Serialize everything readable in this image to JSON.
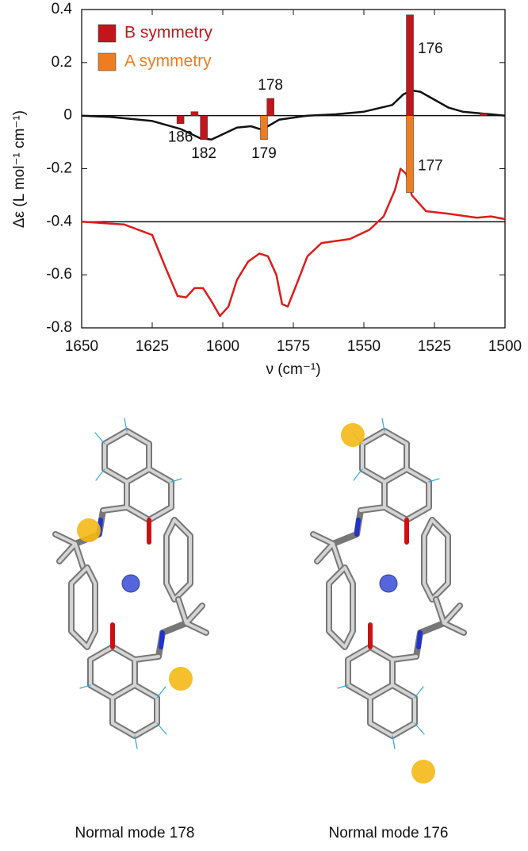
{
  "chart_data": {
    "type": "stick",
    "x_label": "ν (cm⁻¹)",
    "y_label": "Δε (L mol⁻¹ cm⁻¹)",
    "xlim": [
      1650,
      1500
    ],
    "xticks": [
      1650,
      1625,
      1600,
      1575,
      1550,
      1525,
      1500
    ],
    "ylim": [
      -0.8,
      0.4
    ],
    "yticks": [
      0.4,
      0.2,
      0,
      -0.2,
      -0.4,
      -0.6,
      -0.8
    ],
    "hlines": [
      0,
      -0.4
    ],
    "bar_series": [
      {
        "name": "B symmetry",
        "color": "#c0161c",
        "x": [
          1615,
          1610,
          1606.7,
          1583.1,
          1533.7,
          1507.6
        ],
        "values": [
          -0.03,
          0.015,
          -0.09,
          0.065,
          0.38,
          0.01
        ],
        "labels": [
          "186",
          null,
          "182",
          "178",
          "176",
          null
        ]
      },
      {
        "name": "A symmetry",
        "color": "#ee7d22",
        "x": [
          1585.4,
          1533.7
        ],
        "values": [
          -0.09,
          -0.29
        ],
        "labels": [
          "179",
          "177"
        ]
      }
    ],
    "lines": [
      {
        "color": "#111111",
        "x": [
          1650,
          1640,
          1625,
          1615,
          1608,
          1604,
          1600,
          1595,
          1590,
          1587,
          1584,
          1580,
          1570,
          1560,
          1550,
          1540,
          1536,
          1533,
          1530,
          1525,
          1520,
          1515,
          1505,
          1500
        ],
        "y": [
          0,
          -0.005,
          -0.02,
          -0.05,
          -0.085,
          -0.09,
          -0.07,
          -0.045,
          -0.04,
          -0.05,
          -0.04,
          -0.015,
          0,
          0.005,
          0.015,
          0.04,
          0.08,
          0.095,
          0.09,
          0.06,
          0.03,
          0.015,
          0.005,
          0
        ]
      },
      {
        "color": "#dd1c1c",
        "x": [
          1650,
          1635,
          1625,
          1620,
          1616,
          1613,
          1610,
          1607,
          1604,
          1601,
          1598,
          1595,
          1591,
          1587,
          1584,
          1581,
          1579,
          1577,
          1574,
          1570,
          1565,
          1555,
          1548,
          1543,
          1539,
          1537,
          1535,
          1533,
          1528,
          1520,
          1510,
          1505,
          1500
        ],
        "y": [
          -0.4,
          -0.41,
          -0.45,
          -0.58,
          -0.68,
          -0.685,
          -0.65,
          -0.65,
          -0.7,
          -0.755,
          -0.72,
          -0.62,
          -0.55,
          -0.52,
          -0.53,
          -0.6,
          -0.71,
          -0.72,
          -0.64,
          -0.53,
          -0.48,
          -0.465,
          -0.43,
          -0.38,
          -0.28,
          -0.2,
          -0.22,
          -0.3,
          -0.36,
          -0.37,
          -0.385,
          -0.38,
          -0.39
        ]
      }
    ]
  },
  "captions": [
    "Normal mode 178",
    "Normal mode 176"
  ]
}
